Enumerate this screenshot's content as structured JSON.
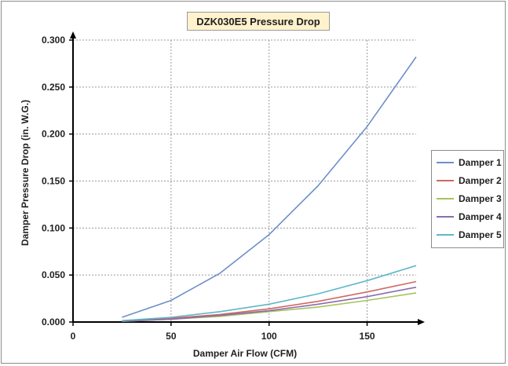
{
  "chart_data": {
    "type": "line",
    "title": "DZK030E5 Pressure Drop",
    "xlabel": "Damper Air Flow (CFM)",
    "ylabel": "Damper Pressure Drop (in. W.G.)",
    "xlim": [
      0,
      175
    ],
    "ylim": [
      0,
      0.3
    ],
    "x_ticks": [
      "0",
      "50",
      "100",
      "150"
    ],
    "y_ticks": [
      "0.000",
      "0.050",
      "0.100",
      "0.150",
      "0.200",
      "0.250",
      "0.300"
    ],
    "grid": true,
    "legend_position": "right",
    "x": [
      25,
      50,
      75,
      100,
      125,
      150,
      175
    ],
    "series": [
      {
        "name": "Damper 1",
        "color": "#6e8fc9",
        "values": [
          0.005,
          0.023,
          0.052,
          0.093,
          0.145,
          0.208,
          0.282
        ]
      },
      {
        "name": "Damper 2",
        "color": "#d06a5e",
        "values": [
          0.001,
          0.004,
          0.008,
          0.014,
          0.022,
          0.032,
          0.043
        ]
      },
      {
        "name": "Damper 3",
        "color": "#a6c45a",
        "values": [
          0.0007,
          0.003,
          0.006,
          0.011,
          0.016,
          0.023,
          0.031
        ]
      },
      {
        "name": "Damper 4",
        "color": "#8a6bb0",
        "values": [
          0.0008,
          0.003,
          0.007,
          0.012,
          0.019,
          0.027,
          0.037
        ]
      },
      {
        "name": "Damper 5",
        "color": "#5fb7c8",
        "values": [
          0.0015,
          0.005,
          0.011,
          0.019,
          0.03,
          0.044,
          0.06
        ]
      }
    ]
  }
}
